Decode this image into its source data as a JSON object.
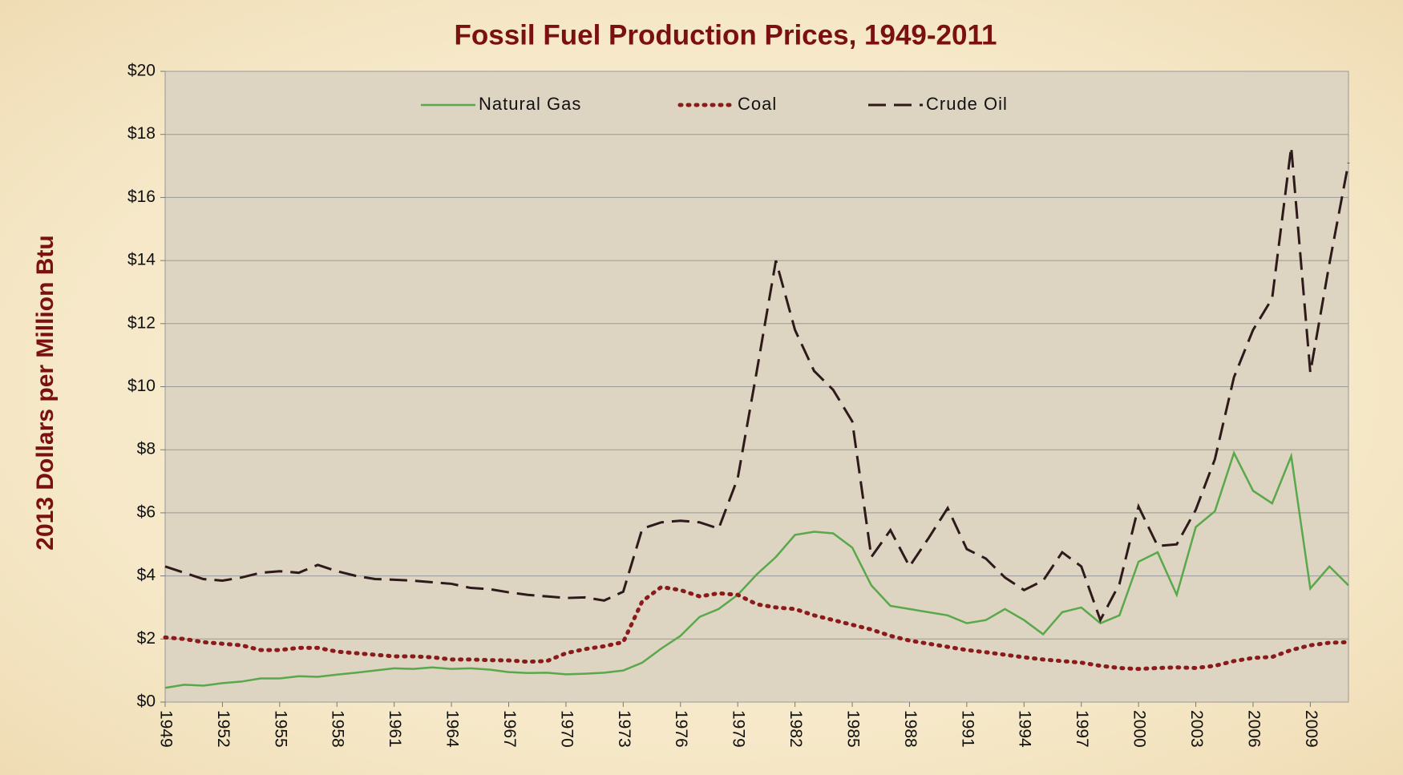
{
  "chart_data": {
    "type": "line",
    "title": "Fossil Fuel Production Prices, 1949-2011",
    "y_label": "2013 Dollars per Million Btu",
    "x": [
      1949,
      1950,
      1951,
      1952,
      1953,
      1954,
      1955,
      1956,
      1957,
      1958,
      1959,
      1960,
      1961,
      1962,
      1963,
      1964,
      1965,
      1966,
      1967,
      1968,
      1969,
      1970,
      1971,
      1972,
      1973,
      1974,
      1975,
      1976,
      1977,
      1978,
      1979,
      1980,
      1981,
      1982,
      1983,
      1984,
      1985,
      1986,
      1987,
      1988,
      1989,
      1990,
      1991,
      1992,
      1993,
      1994,
      1995,
      1996,
      1997,
      1998,
      1999,
      2000,
      2001,
      2002,
      2003,
      2004,
      2005,
      2006,
      2007,
      2008,
      2009,
      2010,
      2011
    ],
    "series": [
      {
        "name": "Natural Gas",
        "color": "#5aa84c",
        "style": "solid",
        "values": [
          0.45,
          0.55,
          0.52,
          0.6,
          0.65,
          0.75,
          0.75,
          0.82,
          0.8,
          0.87,
          0.93,
          1.0,
          1.07,
          1.05,
          1.1,
          1.05,
          1.07,
          1.03,
          0.95,
          0.92,
          0.93,
          0.88,
          0.9,
          0.93,
          1.0,
          1.25,
          1.7,
          2.1,
          2.7,
          2.95,
          3.4,
          4.05,
          4.6,
          5.3,
          5.4,
          5.35,
          4.9,
          3.7,
          3.05,
          2.95,
          2.85,
          2.75,
          2.5,
          2.6,
          2.95,
          2.6,
          2.15,
          2.85,
          3.0,
          2.5,
          2.75,
          4.45,
          4.75,
          3.4,
          5.55,
          6.05,
          7.9,
          6.7,
          6.3,
          7.8,
          3.6,
          4.3,
          3.7
        ]
      },
      {
        "name": "Coal",
        "color": "#8b1a1a",
        "style": "dotted",
        "values": [
          2.05,
          2.0,
          1.9,
          1.85,
          1.8,
          1.65,
          1.65,
          1.72,
          1.72,
          1.6,
          1.55,
          1.5,
          1.45,
          1.45,
          1.42,
          1.35,
          1.35,
          1.33,
          1.32,
          1.28,
          1.3,
          1.55,
          1.68,
          1.77,
          1.9,
          3.2,
          3.65,
          3.55,
          3.35,
          3.45,
          3.4,
          3.1,
          3.0,
          2.95,
          2.75,
          2.6,
          2.45,
          2.3,
          2.1,
          1.95,
          1.85,
          1.75,
          1.65,
          1.58,
          1.5,
          1.42,
          1.35,
          1.3,
          1.25,
          1.15,
          1.08,
          1.05,
          1.08,
          1.1,
          1.08,
          1.15,
          1.3,
          1.4,
          1.43,
          1.65,
          1.8,
          1.88,
          1.9
        ]
      },
      {
        "name": "Crude Oil",
        "color": "#2e1a1a",
        "style": "dashed",
        "values": [
          4.3,
          4.1,
          3.9,
          3.85,
          3.95,
          4.1,
          4.15,
          4.1,
          4.35,
          4.15,
          4.0,
          3.9,
          3.88,
          3.85,
          3.8,
          3.75,
          3.62,
          3.58,
          3.48,
          3.4,
          3.35,
          3.3,
          3.32,
          3.22,
          3.5,
          5.5,
          5.7,
          5.75,
          5.7,
          5.5,
          7.1,
          10.5,
          14.0,
          11.8,
          10.5,
          9.9,
          8.9,
          4.6,
          5.45,
          4.3,
          5.2,
          6.15,
          4.85,
          4.55,
          3.95,
          3.55,
          3.85,
          4.75,
          4.3,
          2.6,
          3.75,
          6.2,
          4.95,
          5.0,
          6.1,
          7.7,
          10.3,
          11.8,
          12.8,
          17.6,
          10.45,
          13.9,
          17.1
        ]
      }
    ],
    "xlim": [
      1949,
      2011
    ],
    "xticks": [
      1949,
      1952,
      1955,
      1958,
      1961,
      1964,
      1967,
      1970,
      1973,
      1976,
      1979,
      1982,
      1985,
      1988,
      1991,
      1994,
      1997,
      2000,
      2003,
      2006,
      2009
    ],
    "ylim": [
      0,
      20
    ],
    "yticks": [
      {
        "value": 0,
        "label": "$0"
      },
      {
        "value": 2,
        "label": "$2"
      },
      {
        "value": 4,
        "label": "$4"
      },
      {
        "value": 6,
        "label": "$6"
      },
      {
        "value": 8,
        "label": "$8"
      },
      {
        "value": 10,
        "label": "$10"
      },
      {
        "value": 12,
        "label": "$12"
      },
      {
        "value": 14,
        "label": "$14"
      },
      {
        "value": 16,
        "label": "$16"
      },
      {
        "value": 18,
        "label": "$18"
      },
      {
        "value": 20,
        "label": "$20"
      }
    ],
    "grid": true,
    "legend": "top"
  }
}
